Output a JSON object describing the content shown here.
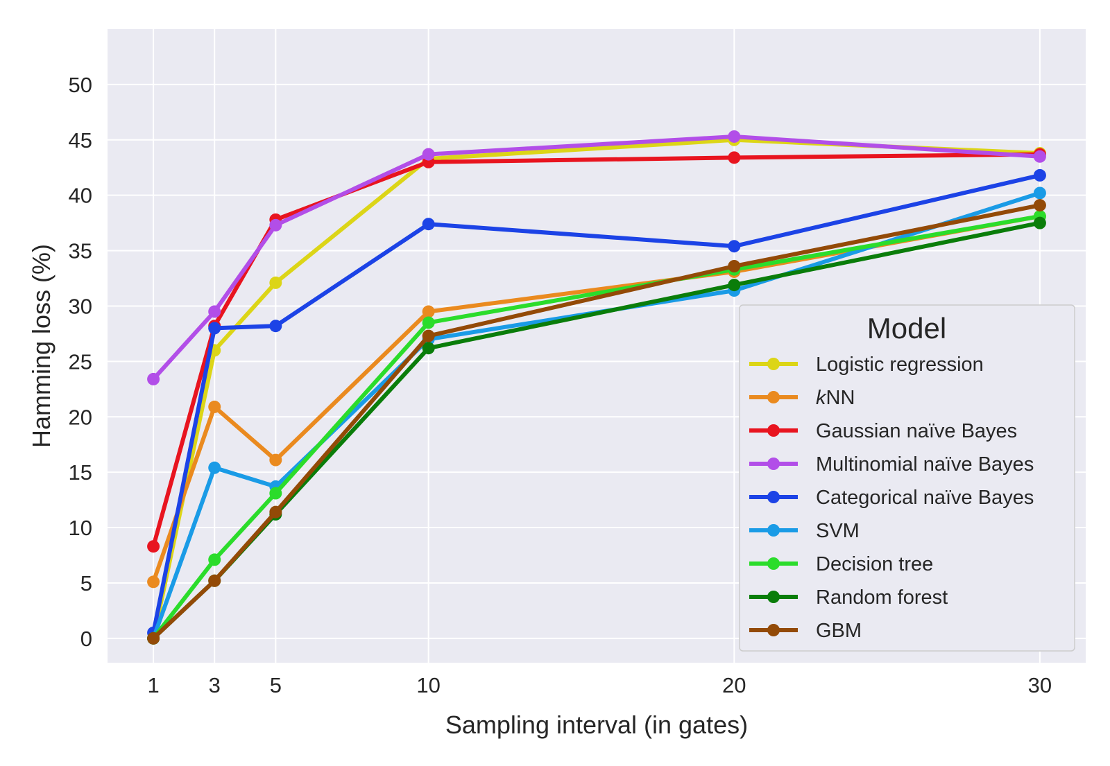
{
  "chart_data": {
    "type": "line",
    "title": "",
    "xlabel": "Sampling interval (in gates)",
    "ylabel": "Hamming loss (%)",
    "x": [
      1,
      3,
      5,
      10,
      20,
      30
    ],
    "x_ticks": [
      "1",
      "3",
      "5",
      "10",
      "20",
      "30"
    ],
    "y_ticks": [
      "0",
      "5",
      "10",
      "15",
      "20",
      "25",
      "30",
      "35",
      "40",
      "45",
      "50"
    ],
    "xlim": [
      -0.5,
      31.5
    ],
    "ylim": [
      -2.2,
      55
    ],
    "grid": true,
    "background": "#eaeaf2",
    "legend": {
      "title": "Model",
      "position": "lower-right"
    },
    "series": [
      {
        "name": "Logistic regression",
        "color": "#dcd517",
        "values": [
          0,
          26,
          32.1,
          43.3,
          45,
          43.8
        ]
      },
      {
        "name": "kNN",
        "color": "#ea8a1f",
        "values": [
          5.1,
          20.9,
          16.1,
          29.5,
          33.1,
          38.1
        ]
      },
      {
        "name": "Gaussian naïve Bayes",
        "color": "#e8141f",
        "values": [
          8.3,
          28.2,
          37.8,
          43,
          43.4,
          43.7
        ]
      },
      {
        "name": "Multinomial naïve Bayes",
        "color": "#b24ee8",
        "values": [
          23.4,
          29.5,
          37.3,
          43.7,
          45.3,
          43.5
        ]
      },
      {
        "name": "Categorical naïve Bayes",
        "color": "#1c43e6",
        "values": [
          0.5,
          28,
          28.2,
          37.4,
          35.4,
          41.8
        ]
      },
      {
        "name": "SVM",
        "color": "#1a9be6",
        "values": [
          0,
          15.4,
          13.7,
          27,
          31.4,
          40.2
        ]
      },
      {
        "name": "Decision tree",
        "color": "#2bdc2b",
        "values": [
          0,
          7.1,
          13.1,
          28.5,
          33.3,
          38.1
        ]
      },
      {
        "name": "Random forest",
        "color": "#0a7d0a",
        "values": [
          0,
          5.2,
          11.2,
          26.2,
          31.9,
          37.5
        ]
      },
      {
        "name": "GBM",
        "color": "#934a07",
        "values": [
          0,
          5.2,
          11.4,
          27.3,
          33.6,
          39.1
        ]
      }
    ]
  }
}
